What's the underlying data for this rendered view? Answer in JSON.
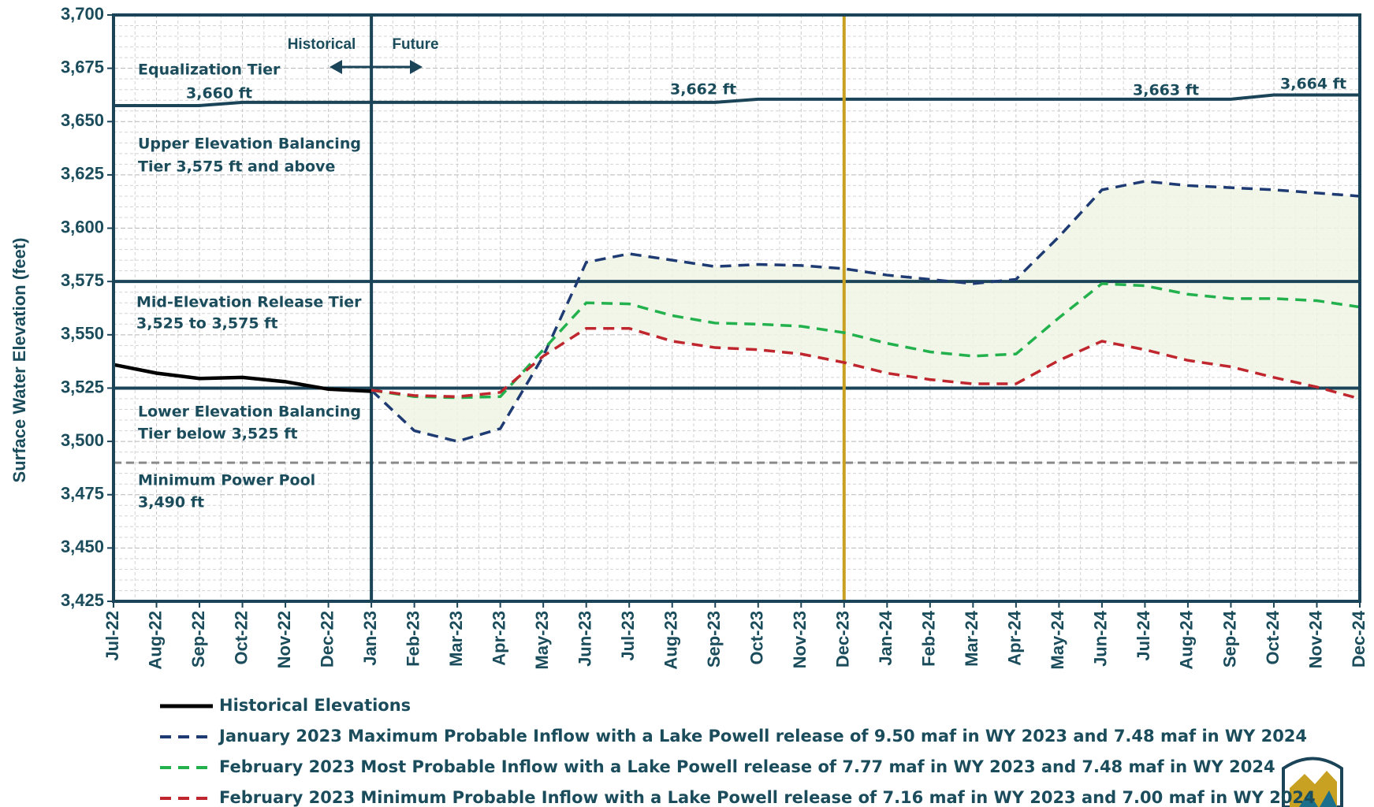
{
  "chart_data": {
    "type": "line",
    "y_label": "Surface Water Elevation (feet)",
    "categories": [
      "Jul-22",
      "Aug-22",
      "Sep-22",
      "Oct-22",
      "Nov-22",
      "Dec-22",
      "Jan-23",
      "Feb-23",
      "Mar-23",
      "Apr-23",
      "May-23",
      "Jun-23",
      "Jul-23",
      "Aug-23",
      "Sep-23",
      "Oct-23",
      "Nov-23",
      "Dec-23",
      "Jan-24",
      "Feb-24",
      "Mar-24",
      "Apr-24",
      "May-24",
      "Jun-24",
      "Jul-24",
      "Aug-24",
      "Sep-24",
      "Oct-24",
      "Nov-24",
      "Dec-24"
    ],
    "ylim": [
      3425,
      3700
    ],
    "yticks": [
      {
        "value": 3425,
        "label": "3,425"
      },
      {
        "value": 3450,
        "label": "3,450"
      },
      {
        "value": 3475,
        "label": "3,475"
      },
      {
        "value": 3500,
        "label": "3,500"
      },
      {
        "value": 3525,
        "label": "3,525"
      },
      {
        "value": 3550,
        "label": "3,550"
      },
      {
        "value": 3575,
        "label": "3,575"
      },
      {
        "value": 3600,
        "label": "3,600"
      },
      {
        "value": 3625,
        "label": "3,625"
      },
      {
        "value": 3650,
        "label": "3,650"
      },
      {
        "value": 3675,
        "label": "3,675"
      },
      {
        "value": 3700,
        "label": "3,700"
      }
    ],
    "grid": true,
    "series": [
      {
        "name": "Historical Elevations",
        "color": "#000000",
        "dash": false,
        "values": [
          3536,
          3532,
          3529.5,
          3530,
          3528,
          3524.5,
          3523.5,
          null,
          null,
          null,
          null,
          null,
          null,
          null,
          null,
          null,
          null,
          null,
          null,
          null,
          null,
          null,
          null,
          null,
          null,
          null,
          null,
          null,
          null,
          null
        ]
      },
      {
        "name": "January 2023 Maximum Probable Inflow with a Lake Powell release of 9.50 maf in WY 2023 and 7.48 maf in WY 2024",
        "color": "#1f3b73",
        "dash": true,
        "values": [
          null,
          null,
          null,
          null,
          null,
          null,
          3524,
          3505,
          3500,
          3506,
          3540,
          3584,
          3588,
          3585,
          3582,
          3583,
          3582.5,
          3581,
          3578,
          3576,
          3574,
          3576,
          3596,
          3618,
          3622,
          3620,
          3619,
          3618,
          3616.5,
          3615
        ]
      },
      {
        "name": "February 2023 Most Probable Inflow with a Lake Powell release of 7.77 maf in WY 2023 and 7.48 maf in WY 2024",
        "color": "#22b14c",
        "dash": true,
        "values": [
          null,
          null,
          null,
          null,
          null,
          null,
          3524,
          3521,
          3520.5,
          3521,
          3543,
          3565,
          3564.5,
          3559,
          3555.5,
          3555,
          3554,
          3551,
          3546,
          3542,
          3540,
          3541,
          3558,
          3574,
          3573,
          3569,
          3567,
          3567,
          3566,
          3563
        ]
      },
      {
        "name": "February 2023 Minimum Probable Inflow with a Lake Powell release of 7.16 maf in WY 2023 and 7.00 maf in WY 2024",
        "color": "#c0262d",
        "dash": true,
        "values": [
          null,
          null,
          null,
          null,
          null,
          null,
          3524,
          3521.5,
          3521,
          3523,
          3540,
          3553,
          3553,
          3547,
          3544,
          3543,
          3541,
          3537,
          3532,
          3529,
          3527,
          3527,
          3538,
          3547,
          3543,
          3538,
          3535,
          3530,
          3525.5,
          3520
        ]
      }
    ],
    "equalization_line": [
      3657.5,
      3657.5,
      3657.5,
      3659,
      3659,
      3659,
      3659,
      3659,
      3659,
      3659,
      3659,
      3659,
      3659,
      3659,
      3659,
      3660.5,
      3660.5,
      3660.5,
      3660.5,
      3660.5,
      3660.5,
      3660.5,
      3660.5,
      3660.5,
      3660.5,
      3660.5,
      3660.5,
      3662.5,
      3662.5,
      3662.5
    ],
    "reference_lines": [
      {
        "value": 3575,
        "style": "solid"
      },
      {
        "value": 3525,
        "style": "solid"
      },
      {
        "value": 3490,
        "style": "dashed"
      }
    ],
    "vertical_markers": [
      {
        "category": "Jan-23",
        "color": "#1b4458"
      },
      {
        "category": "Dec-23",
        "color": "#c8a022"
      }
    ],
    "annotations": {
      "historical": "Historical",
      "future": "Future",
      "equalization": "Equalization Tier",
      "eq_1": "3,660 ft",
      "eq_2": "3,662 ft",
      "eq_3": "3,663 ft",
      "eq_4": "3,664 ft",
      "upper_1": "Upper Elevation Balancing",
      "upper_2": "Tier 3,575 ft and above",
      "mid_1": "Mid-Elevation Release Tier",
      "mid_2": "3,525 to 3,575 ft",
      "lower_1": "Lower Elevation Balancing",
      "lower_2": "Tier below 3,525 ft",
      "min_1": "Minimum Power Pool",
      "min_2": "3,490 ft"
    }
  }
}
